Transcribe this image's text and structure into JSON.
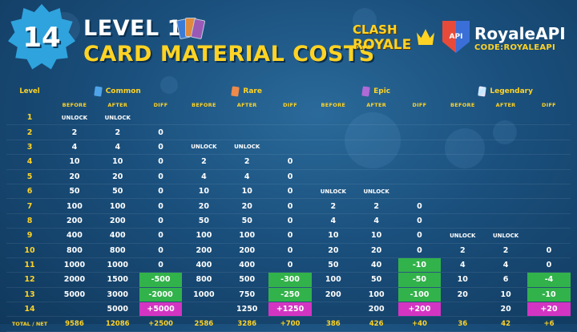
{
  "header": {
    "badge_number": "14",
    "title_line1": "LEVEL 14",
    "title_line2": "CARD MATERIAL COSTS",
    "clash_logo_line1": "CLASH",
    "clash_logo_line2": "ROYALE",
    "api_shield_text": "API",
    "api_name": "RoyaleAPI",
    "api_code": "CODE:ROYALEAPI"
  },
  "colors": {
    "background": "#1a4f7c",
    "accent_yellow": "#ffd324",
    "decrease_green": "#32b24a",
    "new_magenta": "#d335c2"
  },
  "table": {
    "level_header": "Level",
    "rarities": [
      {
        "name": "Common",
        "icon": "common-card-icon"
      },
      {
        "name": "Rare",
        "icon": "rare-card-icon"
      },
      {
        "name": "Epic",
        "icon": "epic-card-icon"
      },
      {
        "name": "Legendary",
        "icon": "legendary-card-icon"
      }
    ],
    "subheaders": {
      "before": "BEFORE",
      "after": "AFTER",
      "diff": "DIFF"
    },
    "rows": [
      {
        "level": "1",
        "cells": [
          "UNLOCK",
          "UNLOCK",
          "",
          "",
          "",
          "",
          "",
          "",
          "",
          "",
          "",
          ""
        ]
      },
      {
        "level": "2",
        "cells": [
          "2",
          "2",
          "0",
          "",
          "",
          "",
          "",
          "",
          "",
          "",
          "",
          ""
        ]
      },
      {
        "level": "3",
        "cells": [
          "4",
          "4",
          "0",
          "UNLOCK",
          "UNLOCK",
          "",
          "",
          "",
          "",
          "",
          "",
          ""
        ]
      },
      {
        "level": "4",
        "cells": [
          "10",
          "10",
          "0",
          "2",
          "2",
          "0",
          "",
          "",
          "",
          "",
          "",
          ""
        ]
      },
      {
        "level": "5",
        "cells": [
          "20",
          "20",
          "0",
          "4",
          "4",
          "0",
          "",
          "",
          "",
          "",
          "",
          ""
        ]
      },
      {
        "level": "6",
        "cells": [
          "50",
          "50",
          "0",
          "10",
          "10",
          "0",
          "UNLOCK",
          "UNLOCK",
          "",
          "",
          "",
          ""
        ]
      },
      {
        "level": "7",
        "cells": [
          "100",
          "100",
          "0",
          "20",
          "20",
          "0",
          "2",
          "2",
          "0",
          "",
          "",
          ""
        ]
      },
      {
        "level": "8",
        "cells": [
          "200",
          "200",
          "0",
          "50",
          "50",
          "0",
          "4",
          "4",
          "0",
          "",
          "",
          ""
        ]
      },
      {
        "level": "9",
        "cells": [
          "400",
          "400",
          "0",
          "100",
          "100",
          "0",
          "10",
          "10",
          "0",
          "UNLOCK",
          "UNLOCK",
          ""
        ]
      },
      {
        "level": "10",
        "cells": [
          "800",
          "800",
          "0",
          "200",
          "200",
          "0",
          "20",
          "20",
          "0",
          "2",
          "2",
          "0"
        ]
      },
      {
        "level": "11",
        "cells": [
          "1000",
          "1000",
          "0",
          "400",
          "400",
          "0",
          "50",
          "40",
          "-10",
          "4",
          "4",
          "0"
        ]
      },
      {
        "level": "12",
        "cells": [
          "2000",
          "1500",
          "-500",
          "800",
          "500",
          "-300",
          "100",
          "50",
          "-50",
          "10",
          "6",
          "-4"
        ]
      },
      {
        "level": "13",
        "cells": [
          "5000",
          "3000",
          "-2000",
          "1000",
          "750",
          "-250",
          "200",
          "100",
          "-100",
          "20",
          "10",
          "-10"
        ]
      },
      {
        "level": "14",
        "cells": [
          "",
          "5000",
          "+5000",
          "",
          "1250",
          "+1250",
          "",
          "200",
          "+200",
          "",
          "20",
          "+20"
        ]
      }
    ],
    "total": {
      "label": "TOTAL / NET",
      "cells": [
        "9586",
        "12086",
        "+2500",
        "2586",
        "3286",
        "+700",
        "386",
        "426",
        "+40",
        "36",
        "42",
        "+6"
      ]
    }
  }
}
